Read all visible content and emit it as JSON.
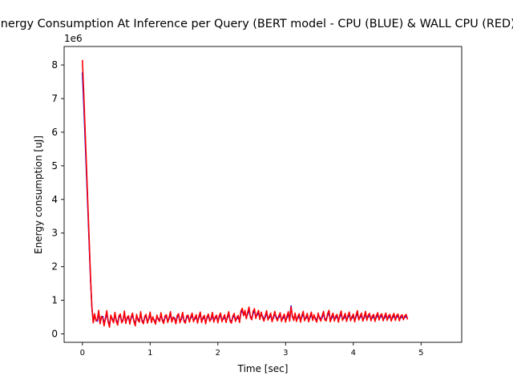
{
  "chart_data": {
    "type": "line",
    "title": "Energy Consumption At Inference per Query (BERT model - CPU (BLUE) & WALL CPU (RED))",
    "xlabel": "Time [sec]",
    "ylabel": "Energy consumption [uJ]",
    "y_offset_label": "1e6",
    "xlim": [
      -0.27,
      5.6
    ],
    "ylim": [
      -250000,
      8550000
    ],
    "x_ticks": [
      0,
      1,
      2,
      3,
      4,
      5
    ],
    "x_tick_labels": [
      "0",
      "1",
      "2",
      "3",
      "4",
      "5"
    ],
    "y_ticks": [
      0,
      1000000,
      2000000,
      3000000,
      4000000,
      5000000,
      6000000,
      7000000,
      8000000
    ],
    "y_tick_labels": [
      "0",
      "1",
      "2",
      "3",
      "4",
      "5",
      "6",
      "7",
      "8"
    ],
    "grid": false,
    "legend": "none",
    "series": [
      {
        "color": "#0000ff",
        "x_start": 0.0,
        "x_step": 0.02,
        "values": [
          7780000,
          6850000,
          5820000,
          4790000,
          3740000,
          2680000,
          1620000,
          780000,
          360000,
          560000,
          420000,
          380000,
          650000,
          340000,
          480000,
          520000,
          310000,
          440000,
          620000,
          390000,
          280000,
          510000,
          460000,
          360000,
          580000,
          420000,
          300000,
          490000,
          540000,
          370000,
          430000,
          610000,
          350000,
          450000,
          500000,
          330000,
          470000,
          560000,
          400000,
          290000,
          520000,
          450000,
          380000,
          600000,
          410000,
          340000,
          480000,
          530000,
          360000,
          440000,
          590000,
          380000,
          470000,
          420000,
          330000,
          510000,
          460000,
          400000,
          570000,
          430000,
          350000,
          490000,
          520000,
          380000,
          450000,
          600000,
          390000,
          460000,
          480000,
          340000,
          500000,
          550000,
          370000,
          430000,
          580000,
          410000,
          360000,
          490000,
          510000,
          390000,
          470000,
          560000,
          400000,
          440000,
          520000,
          360000,
          480000,
          590000,
          380000,
          450000,
          500000,
          340000,
          470000,
          540000,
          410000,
          430000,
          580000,
          390000,
          460000,
          510000,
          370000,
          490000,
          560000,
          400000,
          440000,
          520000,
          380000,
          470000,
          600000,
          420000,
          360000,
          480000,
          550000,
          410000,
          450000,
          500000,
          380000,
          620000,
          700000,
          560000,
          640000,
          480000,
          590000,
          720000,
          520000,
          460000,
          610000,
          680000,
          500000,
          560000,
          640000,
          470000,
          590000,
          530000,
          420000,
          500000,
          620000,
          450000,
          480000,
          560000,
          400000,
          470000,
          600000,
          520000,
          430000,
          490000,
          570000,
          410000,
          460000,
          530000,
          390000,
          480000,
          590000,
          420000,
          830000,
          500000,
          440000,
          560000,
          410000,
          470000,
          540000,
          390000,
          500000,
          600000,
          430000,
          460000,
          550000,
          400000,
          480000,
          580000,
          440000,
          520000,
          470000,
          390000,
          560000,
          510000,
          420000,
          490000,
          600000,
          450000,
          430000,
          540000,
          680000,
          400000,
          470000,
          560000,
          420000,
          480000,
          520000,
          390000,
          500000,
          610000,
          440000,
          460000,
          550000,
          410000,
          490000,
          580000,
          430000,
          470000,
          530000,
          400000,
          500000,
          620000,
          450000,
          480000,
          560000,
          420000,
          470000,
          600000,
          440000,
          510000,
          550000,
          430000,
          480000,
          520000,
          410000,
          490000,
          570000,
          450000,
          500000,
          540000,
          430000,
          470000,
          560000,
          440000,
          490000,
          520000,
          420000,
          480000,
          550000,
          440000,
          500000,
          530000,
          430000,
          480000,
          510000,
          460000,
          490000,
          520000,
          470000
        ]
      },
      {
        "color": "#ff0000",
        "x_start": 0.0,
        "x_step": 0.02,
        "values": [
          8150000,
          7150000,
          6080000,
          5000000,
          3900000,
          2800000,
          1680000,
          800000,
          330000,
          600000,
          390000,
          420000,
          700000,
          300000,
          520000,
          480000,
          240000,
          470000,
          690000,
          360000,
          200000,
          560000,
          430000,
          330000,
          640000,
          380000,
          260000,
          540000,
          590000,
          330000,
          400000,
          680000,
          310000,
          490000,
          540000,
          290000,
          510000,
          620000,
          370000,
          240000,
          580000,
          410000,
          350000,
          660000,
          380000,
          300000,
          520000,
          580000,
          320000,
          470000,
          650000,
          340000,
          510000,
          390000,
          290000,
          560000,
          430000,
          370000,
          630000,
          400000,
          310000,
          540000,
          570000,
          340000,
          490000,
          660000,
          350000,
          500000,
          450000,
          300000,
          550000,
          600000,
          330000,
          470000,
          640000,
          370000,
          320000,
          540000,
          560000,
          350000,
          510000,
          620000,
          360000,
          480000,
          570000,
          320000,
          520000,
          650000,
          340000,
          490000,
          550000,
          300000,
          510000,
          590000,
          370000,
          470000,
          640000,
          350000,
          500000,
          560000,
          330000,
          540000,
          620000,
          360000,
          480000,
          570000,
          340000,
          510000,
          660000,
          380000,
          320000,
          520000,
          610000,
          370000,
          490000,
          550000,
          340000,
          680000,
          760000,
          540000,
          700000,
          450000,
          640000,
          800000,
          490000,
          420000,
          670000,
          750000,
          460000,
          610000,
          700000,
          430000,
          650000,
          490000,
          380000,
          550000,
          690000,
          410000,
          520000,
          620000,
          360000,
          510000,
          670000,
          480000,
          390000,
          540000,
          630000,
          370000,
          500000,
          590000,
          350000,
          530000,
          660000,
          380000,
          800000,
          540000,
          400000,
          620000,
          370000,
          510000,
          600000,
          350000,
          550000,
          670000,
          390000,
          500000,
          610000,
          360000,
          520000,
          650000,
          400000,
          570000,
          430000,
          350000,
          620000,
          470000,
          380000,
          540000,
          670000,
          410000,
          390000,
          600000,
          700000,
          360000,
          520000,
          620000,
          380000,
          530000,
          580000,
          350000,
          550000,
          680000,
          400000,
          500000,
          610000,
          370000,
          540000,
          650000,
          390000,
          510000,
          590000,
          360000,
          550000,
          690000,
          410000,
          520000,
          620000,
          380000,
          510000,
          670000,
          400000,
          560000,
          610000,
          390000,
          530000,
          580000,
          370000,
          540000,
          630000,
          410000,
          550000,
          600000,
          390000,
          520000,
          620000,
          400000,
          540000,
          580000,
          380000,
          530000,
          610000,
          400000,
          550000,
          590000,
          390000,
          530000,
          570000,
          420000,
          540000,
          580000,
          430000
        ]
      }
    ]
  }
}
